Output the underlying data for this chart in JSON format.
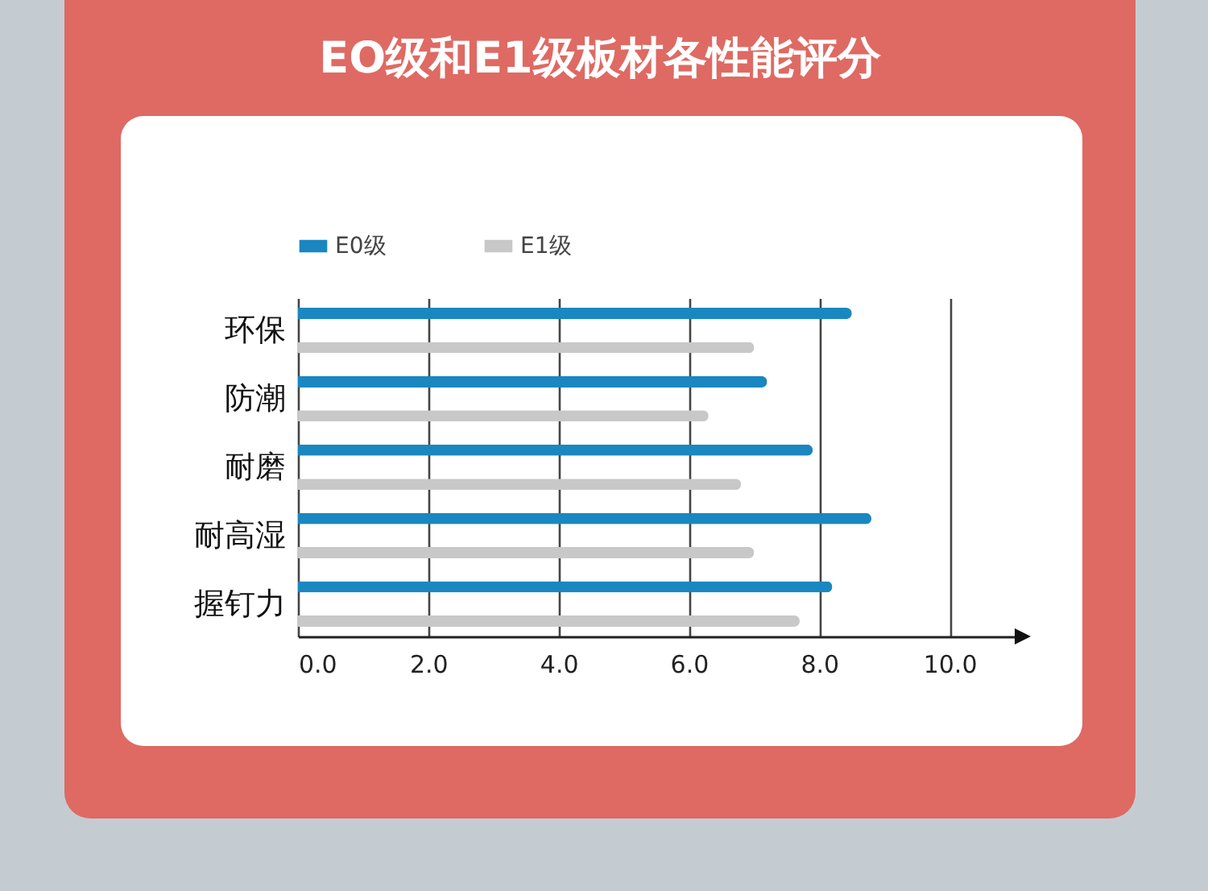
{
  "chart_data": {
    "type": "bar",
    "orientation": "horizontal",
    "title": "EO级和E1级板材各性能评分",
    "categories": [
      "环保",
      "防潮",
      "耐磨",
      "耐高湿",
      "握钉力"
    ],
    "series": [
      {
        "name": "E0级",
        "color": "#1a87c0",
        "values": [
          8.5,
          7.2,
          7.9,
          8.8,
          8.2
        ]
      },
      {
        "name": "E1级",
        "color": "#c8c8c8",
        "values": [
          7.0,
          6.3,
          6.8,
          7.0,
          7.7
        ]
      }
    ],
    "xlim": [
      0,
      11
    ],
    "xticks": [
      {
        "value": 0,
        "label": "0.0"
      },
      {
        "value": 2,
        "label": "2.0"
      },
      {
        "value": 4,
        "label": "4.0"
      },
      {
        "value": 6,
        "label": "6.0"
      },
      {
        "value": 8,
        "label": "8.0"
      },
      {
        "value": 10,
        "label": "10.0"
      }
    ],
    "grid": "x",
    "legend": "top"
  }
}
